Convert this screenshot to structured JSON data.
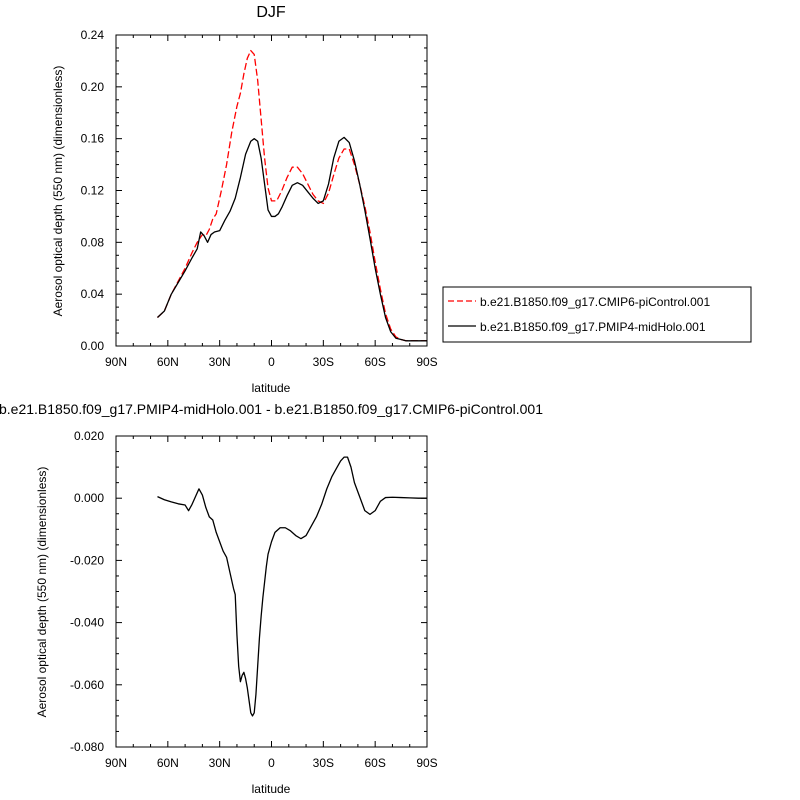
{
  "chart_data": [
    {
      "type": "line",
      "title": "DJF",
      "xlabel": "latitude",
      "ylabel": "Aerosol optical depth (550 nm) (dimensionless)",
      "xlim": [
        90,
        -90
      ],
      "ylim": [
        0,
        0.24
      ],
      "x_ticks": [
        90,
        60,
        30,
        0,
        -30,
        -60,
        -90
      ],
      "x_tick_labels": [
        "90N",
        "60N",
        "30N",
        "0",
        "30S",
        "60S",
        "90S"
      ],
      "y_ticks": [
        0,
        0.04,
        0.08,
        0.12,
        0.16,
        0.2,
        0.24
      ],
      "y_tick_labels": [
        "0.00",
        "0.04",
        "0.08",
        "0.12",
        "0.16",
        "0.20",
        "0.24"
      ],
      "legend_position": "right",
      "series": [
        {
          "name": "b.e21.B1850.f09_g17.CMIP6-piControl.001",
          "color": "#ff0000",
          "dash": "dashed",
          "x": [
            66,
            62,
            58,
            54,
            50,
            46,
            43,
            40,
            38,
            36,
            34,
            32,
            29,
            26,
            23,
            20,
            18,
            16,
            14,
            12,
            10,
            8,
            6,
            4,
            2,
            0,
            -3,
            -6,
            -9,
            -12,
            -15,
            -18,
            -21,
            -24,
            -27,
            -30,
            -33,
            -36,
            -39,
            -42,
            -45,
            -48,
            -51,
            -54,
            -57,
            -60,
            -63,
            -66,
            -69,
            -72,
            -75,
            -78,
            -81,
            -84,
            -87,
            -90
          ],
          "y": [
            0.022,
            0.027,
            0.04,
            0.05,
            0.06,
            0.072,
            0.08,
            0.086,
            0.085,
            0.09,
            0.098,
            0.102,
            0.12,
            0.14,
            0.165,
            0.185,
            0.195,
            0.21,
            0.222,
            0.228,
            0.225,
            0.205,
            0.175,
            0.145,
            0.122,
            0.112,
            0.112,
            0.12,
            0.13,
            0.138,
            0.138,
            0.133,
            0.125,
            0.117,
            0.112,
            0.11,
            0.118,
            0.132,
            0.145,
            0.152,
            0.152,
            0.14,
            0.125,
            0.108,
            0.088,
            0.065,
            0.044,
            0.025,
            0.013,
            0.007,
            0.005,
            0.004,
            0.004,
            0.004,
            0.004,
            0.004
          ]
        },
        {
          "name": "b.e21.B1850.f09_g17.PMIP4-midHolo.001",
          "color": "#000000",
          "dash": "solid",
          "x": [
            66,
            62,
            58,
            54,
            50,
            46,
            43,
            41,
            39,
            37,
            35,
            33,
            30,
            27,
            24,
            21,
            18,
            15,
            12,
            10,
            8,
            6,
            4,
            2,
            0,
            -2,
            -4,
            -6,
            -9,
            -12,
            -15,
            -18,
            -21,
            -24,
            -27,
            -30,
            -33,
            -36,
            -39,
            -42,
            -45,
            -48,
            -51,
            -54,
            -57,
            -60,
            -63,
            -66,
            -69,
            -72,
            -75,
            -78,
            -81,
            -84,
            -87,
            -90
          ],
          "y": [
            0.022,
            0.027,
            0.04,
            0.049,
            0.058,
            0.068,
            0.075,
            0.088,
            0.085,
            0.08,
            0.086,
            0.088,
            0.089,
            0.097,
            0.104,
            0.114,
            0.13,
            0.148,
            0.158,
            0.16,
            0.158,
            0.145,
            0.125,
            0.105,
            0.1,
            0.1,
            0.102,
            0.107,
            0.116,
            0.124,
            0.126,
            0.124,
            0.119,
            0.114,
            0.11,
            0.112,
            0.125,
            0.145,
            0.158,
            0.161,
            0.157,
            0.143,
            0.125,
            0.105,
            0.083,
            0.06,
            0.04,
            0.022,
            0.011,
            0.006,
            0.005,
            0.004,
            0.004,
            0.004,
            0.004,
            0.004
          ]
        }
      ]
    },
    {
      "type": "line",
      "title": "b.e21.B1850.f09_g17.PMIP4-midHolo.001 - b.e21.B1850.f09_g17.CMIP6-piControl.001",
      "xlabel": "latitude",
      "ylabel": "Aerosol optical depth (550 nm) (dimensionless)",
      "xlim": [
        90,
        -90
      ],
      "ylim": [
        -0.08,
        0.02
      ],
      "x_ticks": [
        90,
        60,
        30,
        0,
        -30,
        -60,
        -90
      ],
      "x_tick_labels": [
        "90N",
        "60N",
        "30N",
        "0",
        "30S",
        "60S",
        "90S"
      ],
      "y_ticks": [
        0.02,
        0,
        -0.02,
        -0.04,
        -0.06,
        -0.08
      ],
      "y_tick_labels": [
        "0.020",
        "0.000",
        "-0.020",
        "-0.040",
        "-0.060",
        "-0.080"
      ],
      "series": [
        {
          "color": "#000000",
          "dash": "solid",
          "x": [
            66,
            62,
            58,
            54,
            50,
            48,
            46,
            44,
            42,
            40,
            38,
            36,
            34,
            32,
            30,
            28,
            26,
            24,
            22,
            21,
            20,
            19,
            18,
            17,
            16,
            15,
            14,
            13,
            12,
            11,
            10,
            9,
            8,
            7,
            6,
            5,
            4,
            3,
            2,
            0,
            -2,
            -5,
            -8,
            -11,
            -14,
            -17,
            -20,
            -23,
            -26,
            -29,
            -32,
            -35,
            -38,
            -40,
            -42,
            -44,
            -46,
            -48,
            -51,
            -54,
            -57,
            -60,
            -63,
            -66,
            -70,
            -75,
            -80,
            -85,
            -90
          ],
          "y": [
            0.0005,
            -0.0005,
            -0.0012,
            -0.0018,
            -0.0022,
            -0.004,
            -0.002,
            0.0005,
            0.003,
            0.001,
            -0.003,
            -0.006,
            -0.007,
            -0.011,
            -0.014,
            -0.017,
            -0.019,
            -0.024,
            -0.029,
            -0.031,
            -0.044,
            -0.054,
            -0.059,
            -0.057,
            -0.056,
            -0.058,
            -0.061,
            -0.065,
            -0.069,
            -0.07,
            -0.069,
            -0.063,
            -0.054,
            -0.045,
            -0.038,
            -0.032,
            -0.027,
            -0.022,
            -0.018,
            -0.014,
            -0.011,
            -0.0095,
            -0.0095,
            -0.0105,
            -0.012,
            -0.013,
            -0.012,
            -0.009,
            -0.006,
            -0.002,
            0.003,
            0.007,
            0.01,
            0.012,
            0.0132,
            0.0132,
            0.01,
            0.005,
            0.0005,
            -0.004,
            -0.0052,
            -0.004,
            -0.001,
            0.0002,
            0.0003,
            0.0002,
            0.0001,
            0.0,
            0.0
          ]
        }
      ]
    }
  ]
}
